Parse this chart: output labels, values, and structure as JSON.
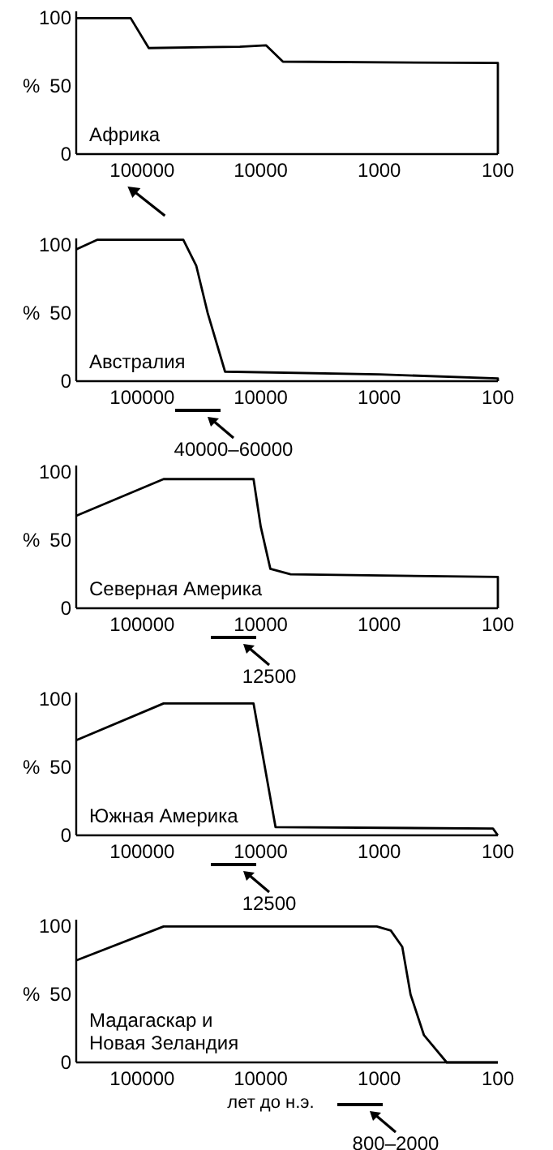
{
  "chart_data": [
    {
      "type": "line",
      "title": "Африка",
      "ylabel": "%",
      "x": [
        360000,
        125000,
        88000,
        15000,
        9000,
        6500,
        100,
        100
      ],
      "series": [
        {
          "color": "#000000",
          "values": [
            100,
            100,
            78,
            79,
            80,
            68,
            67,
            0
          ]
        }
      ],
      "log": "x",
      "xlim": [
        360000,
        100
      ],
      "xticks": [
        100000,
        10000,
        1000,
        100
      ],
      "ylim": [
        0,
        105
      ],
      "yticks": [
        0,
        50,
        100
      ],
      "grid": false
    },
    {
      "type": "line",
      "title": "Австралия",
      "ylabel": "%",
      "x": [
        360000,
        240000,
        45000,
        35000,
        28000,
        20000,
        1000,
        100,
        100
      ],
      "series": [
        {
          "color": "#000000",
          "values": [
            97,
            104,
            104,
            85,
            50,
            7,
            5,
            2,
            0
          ]
        }
      ],
      "log": "x",
      "xlim": [
        360000,
        100
      ],
      "xticks": [
        100000,
        10000,
        1000,
        100
      ],
      "ylim": [
        0,
        105
      ],
      "yticks": [
        0,
        50,
        100
      ],
      "grid": false,
      "annotations": [
        "40000–60000"
      ]
    },
    {
      "type": "line",
      "title": "Северная Америка",
      "ylabel": "%",
      "x": [
        360000,
        66000,
        11500,
        10000,
        8300,
        5600,
        100,
        100
      ],
      "series": [
        {
          "color": "#000000",
          "values": [
            68,
            95,
            95,
            60,
            29,
            25,
            23,
            0
          ]
        }
      ],
      "log": "x",
      "xlim": [
        360000,
        100
      ],
      "xticks": [
        100000,
        10000,
        1000,
        100
      ],
      "ylim": [
        0,
        105
      ],
      "yticks": [
        0,
        50,
        100
      ],
      "grid": false,
      "annotations": [
        "12500"
      ]
    },
    {
      "type": "line",
      "title": "Южная Америка",
      "ylabel": "%",
      "x": [
        360000,
        66000,
        11500,
        7500,
        110,
        100
      ],
      "series": [
        {
          "color": "#000000",
          "values": [
            70,
            97,
            97,
            6,
            5,
            0
          ]
        }
      ],
      "log": "x",
      "xlim": [
        360000,
        100
      ],
      "xticks": [
        100000,
        10000,
        1000,
        100
      ],
      "ylim": [
        0,
        105
      ],
      "yticks": [
        0,
        50,
        100
      ],
      "grid": false,
      "annotations": [
        "12500"
      ]
    },
    {
      "type": "line",
      "title": "Мадагаскар и\nНовая Зеландия",
      "ylabel": "%",
      "xlabel": "лет до н.э.",
      "x": [
        360000,
        66000,
        1050,
        800,
        640,
        545,
        420,
        270,
        100
      ],
      "series": [
        {
          "color": "#000000",
          "values": [
            75,
            100,
            100,
            97,
            85,
            50,
            20,
            0,
            0
          ]
        }
      ],
      "log": "x",
      "xlim": [
        360000,
        100
      ],
      "xticks": [
        100000,
        10000,
        1000,
        100
      ],
      "ylim": [
        0,
        105
      ],
      "yticks": [
        0,
        50,
        100
      ],
      "grid": false,
      "annotations": [
        "800–2000"
      ]
    }
  ]
}
